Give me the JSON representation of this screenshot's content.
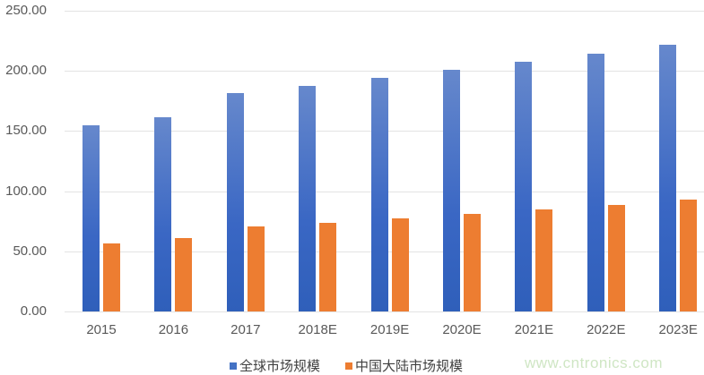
{
  "chart_data": {
    "type": "bar",
    "title": "",
    "xlabel": "",
    "ylabel": "",
    "ylim": [
      0,
      250
    ],
    "yticks": [
      "0.00",
      "50.00",
      "100.00",
      "150.00",
      "200.00",
      "250.00"
    ],
    "grid": true,
    "legend_position": "bottom",
    "categories": [
      "2015",
      "2016",
      "2017",
      "2018E",
      "2019E",
      "2020E",
      "2021E",
      "2022E",
      "2023E"
    ],
    "series": [
      {
        "name": "全球市场规模",
        "color": "#4472c4",
        "values": [
          154.8,
          161.5,
          181.5,
          187.5,
          194.2,
          201.0,
          207.6,
          214.3,
          221.7
        ]
      },
      {
        "name": "中国大陆市场规模",
        "color": "#ed7d31",
        "values": [
          56.5,
          61.0,
          70.7,
          73.7,
          77.4,
          81.1,
          84.8,
          88.5,
          93.0
        ]
      }
    ]
  },
  "watermark": "www.cntronics.com"
}
